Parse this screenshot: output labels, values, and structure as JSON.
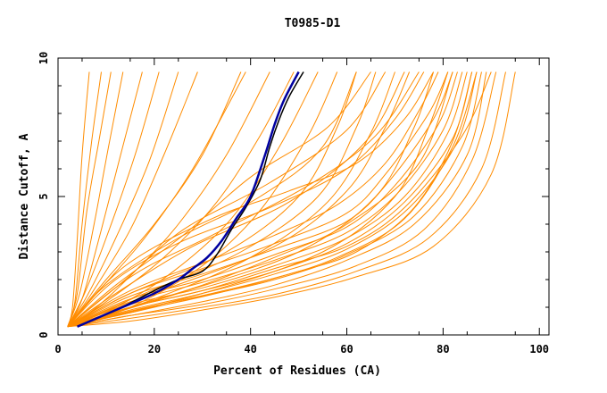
{
  "chart_data": {
    "type": "line",
    "title": "T0985-D1",
    "xlabel": "Percent of Residues (CA)",
    "ylabel": "Distance Cutoff, A",
    "xlim": [
      0,
      102
    ],
    "ylim": [
      0,
      10
    ],
    "x_ticks": [
      0,
      20,
      40,
      60,
      80,
      100
    ],
    "y_ticks": [
      0,
      5,
      10
    ],
    "grid": false,
    "legend": "none",
    "colors": {
      "background_curves": "#ff8c00",
      "highlight_primary": "#0000a0",
      "highlight_secondary": "#000000",
      "axes": "#000000"
    },
    "series": [
      {
        "x": [
          4.0,
          12.0,
          20.0,
          25.0,
          28.0,
          31.0,
          34.0,
          37.0,
          40.0,
          43.0,
          45.0,
          47.0,
          50.0
        ],
        "y": [
          0.3,
          0.9,
          1.5,
          2.0,
          2.4,
          2.8,
          3.4,
          4.2,
          5.0,
          6.5,
          7.6,
          8.5,
          9.5
        ]
      },
      {
        "x": [
          4.0,
          12.0,
          20.0,
          25.0,
          30.0,
          33.0,
          36.0,
          39.0,
          42.0,
          44.0,
          46.0,
          48.0,
          51.0
        ],
        "y": [
          0.3,
          0.9,
          1.6,
          2.0,
          2.3,
          2.9,
          3.8,
          4.6,
          5.6,
          6.8,
          7.8,
          8.6,
          9.5
        ]
      },
      {
        "x": [
          2.0,
          3.0,
          4.0,
          5.0,
          6.5
        ],
        "y": [
          0.3,
          1.0,
          3.5,
          6.5,
          9.5
        ]
      },
      {
        "x": [
          2.0,
          3.5,
          5.0,
          7.0,
          9.0
        ],
        "y": [
          0.3,
          1.2,
          4.0,
          7.0,
          9.5
        ]
      },
      {
        "x": [
          2.0,
          4.0,
          6.0,
          8.5,
          11.0
        ],
        "y": [
          0.3,
          1.5,
          4.5,
          7.0,
          9.5
        ]
      },
      {
        "x": [
          2.0,
          4.5,
          7.5,
          10.5,
          13.5
        ],
        "y": [
          0.3,
          1.5,
          4.0,
          6.8,
          9.5
        ]
      },
      {
        "x": [
          2.0,
          5.0,
          9.0,
          13.0,
          17.5
        ],
        "y": [
          0.3,
          1.3,
          3.8,
          6.5,
          9.5
        ]
      },
      {
        "x": [
          2.0,
          5.5,
          10.0,
          16.0,
          21.0
        ],
        "y": [
          0.3,
          1.5,
          3.5,
          6.5,
          9.5
        ]
      },
      {
        "x": [
          2.0,
          6.0,
          12.0,
          19.0,
          25.0
        ],
        "y": [
          0.3,
          1.4,
          3.5,
          6.3,
          9.5
        ]
      },
      {
        "x": [
          2.0,
          7.0,
          15.0,
          22.0,
          29.0
        ],
        "y": [
          0.3,
          1.5,
          3.8,
          6.5,
          9.5
        ]
      },
      {
        "x": [
          2.0,
          8.0,
          16.0,
          25.0,
          35.0,
          44.0
        ],
        "y": [
          0.3,
          1.0,
          2.3,
          4.0,
          6.5,
          9.5
        ]
      },
      {
        "x": [
          2.0,
          8.0,
          18.0,
          28.0,
          39.0
        ],
        "y": [
          0.3,
          1.5,
          3.5,
          6.0,
          9.5
        ]
      },
      {
        "x": [
          2.0,
          10.0,
          20.0,
          30.0,
          38.0
        ],
        "y": [
          0.3,
          2.0,
          4.0,
          6.5,
          9.5
        ]
      },
      {
        "x": [
          2.0,
          10.0,
          22.0,
          33.0,
          42.0,
          49.0
        ],
        "y": [
          0.3,
          1.2,
          2.8,
          4.8,
          7.2,
          9.5
        ]
      },
      {
        "x": [
          2.0,
          12.0,
          24.0,
          36.0,
          46.0,
          54.0
        ],
        "y": [
          0.3,
          1.0,
          2.3,
          4.2,
          6.8,
          9.5
        ]
      },
      {
        "x": [
          2.0,
          15.0,
          30.0,
          42.0,
          52.0,
          58.0
        ],
        "y": [
          0.3,
          1.0,
          2.5,
          4.5,
          7.2,
          9.5
        ]
      },
      {
        "x": [
          2.0,
          15.0,
          35.0,
          50.0,
          58.0,
          62.0
        ],
        "y": [
          0.3,
          1.5,
          3.0,
          5.0,
          7.5,
          9.5
        ]
      },
      {
        "x": [
          2.0,
          18.0,
          38.0,
          54.0,
          62.0,
          66.0
        ],
        "y": [
          0.3,
          1.5,
          3.0,
          5.0,
          7.5,
          9.5
        ]
      },
      {
        "x": [
          2.0,
          20.0,
          40.0,
          56.0,
          65.0,
          70.0
        ],
        "y": [
          0.3,
          1.3,
          2.8,
          4.8,
          7.3,
          9.5
        ]
      },
      {
        "x": [
          2.0,
          20.0,
          45.0,
          60.0,
          68.0,
          73.0
        ],
        "y": [
          0.3,
          1.5,
          3.2,
          5.2,
          7.5,
          9.5
        ]
      },
      {
        "x": [
          2.0,
          25.0,
          50.0,
          66.0,
          74.0,
          78.0
        ],
        "y": [
          0.3,
          1.5,
          3.0,
          5.0,
          7.5,
          9.5
        ]
      },
      {
        "x": [
          2.0,
          30.0,
          55.0,
          70.0,
          77.0,
          81.0
        ],
        "y": [
          0.3,
          1.5,
          3.0,
          5.0,
          7.5,
          9.5
        ]
      },
      {
        "x": [
          2.0,
          10.0,
          25.0,
          42.0,
          55.0,
          62.0
        ],
        "y": [
          0.3,
          1.8,
          3.5,
          5.0,
          6.8,
          9.5
        ]
      },
      {
        "x": [
          2.0,
          14.0,
          26.0,
          44.0,
          60.0,
          68.0
        ],
        "y": [
          0.3,
          2.0,
          3.8,
          5.5,
          7.4,
          9.5
        ]
      },
      {
        "x": [
          2.0,
          12.0,
          28.0,
          48.0,
          64.0,
          72.0
        ],
        "y": [
          0.3,
          1.5,
          3.2,
          4.8,
          7.0,
          9.5
        ]
      },
      {
        "x": [
          2.0,
          16.0,
          32.0,
          52.0,
          66.0,
          75.0
        ],
        "y": [
          0.3,
          2.2,
          3.6,
          5.4,
          7.2,
          9.5
        ]
      },
      {
        "x": [
          2.0,
          12.0,
          26.0,
          40.0,
          56.0,
          65.0
        ],
        "y": [
          0.3,
          1.8,
          3.6,
          5.7,
          7.5,
          9.5
        ]
      },
      {
        "x": [
          2.0,
          12.0,
          26.0,
          44.0,
          60.0,
          70.0,
          76.0
        ],
        "y": [
          0.3,
          2.0,
          3.4,
          4.6,
          6.0,
          7.8,
          9.5
        ]
      },
      {
        "x": [
          2.0,
          14.0,
          32.0,
          48.0,
          62.0,
          72.0,
          78.0
        ],
        "y": [
          0.3,
          2.5,
          4.2,
          5.2,
          6.2,
          7.8,
          9.5
        ]
      },
      {
        "x": [
          2.0,
          15.0,
          30.0,
          45.0,
          60.0,
          75.0,
          82.0
        ],
        "y": [
          0.3,
          1.0,
          1.8,
          2.8,
          4.0,
          6.2,
          9.5
        ]
      },
      {
        "x": [
          2.0,
          15.0,
          30.0,
          45.0,
          60.0,
          74.0,
          85.0,
          89.0
        ],
        "y": [
          0.3,
          0.7,
          1.2,
          1.8,
          2.7,
          4.0,
          6.5,
          9.5
        ]
      },
      {
        "x": [
          2.0,
          15.0,
          30.0,
          45.0,
          60.0,
          74.0,
          84.0,
          88.0
        ],
        "y": [
          0.3,
          0.8,
          1.4,
          2.0,
          2.9,
          4.3,
          6.8,
          9.5
        ]
      },
      {
        "x": [
          2.0,
          15.0,
          30.0,
          45.0,
          60.0,
          73.0,
          83.0,
          87.0
        ],
        "y": [
          0.3,
          0.9,
          1.5,
          2.2,
          3.1,
          4.6,
          7.0,
          9.5
        ]
      },
      {
        "x": [
          2.0,
          15.0,
          30.0,
          45.0,
          60.0,
          72.0,
          82.0,
          86.0
        ],
        "y": [
          0.3,
          1.0,
          1.6,
          2.3,
          3.3,
          4.8,
          7.1,
          9.5
        ]
      },
      {
        "x": [
          2.0,
          15.0,
          30.0,
          45.0,
          60.0,
          72.0,
          81.0,
          85.0
        ],
        "y": [
          0.3,
          1.1,
          1.7,
          2.5,
          3.5,
          5.0,
          7.3,
          9.5
        ]
      },
      {
        "x": [
          2.0,
          15.0,
          30.0,
          45.0,
          60.0,
          71.0,
          80.0,
          84.0
        ],
        "y": [
          0.3,
          1.2,
          1.9,
          2.7,
          3.7,
          5.2,
          7.4,
          9.5
        ]
      },
      {
        "x": [
          2.0,
          15.0,
          30.0,
          45.0,
          60.0,
          70.0,
          79.0,
          83.0
        ],
        "y": [
          0.3,
          1.3,
          2.0,
          2.9,
          3.9,
          5.4,
          7.6,
          9.5
        ]
      },
      {
        "x": [
          2.0,
          15.0,
          30.0,
          45.0,
          60.0,
          69.0,
          78.0,
          82.0
        ],
        "y": [
          0.3,
          1.4,
          2.2,
          3.1,
          4.1,
          5.6,
          7.8,
          9.5
        ]
      },
      {
        "x": [
          2.0,
          15.0,
          30.0,
          45.0,
          60.0,
          68.0,
          77.0,
          81.0
        ],
        "y": [
          0.3,
          1.5,
          2.4,
          3.3,
          4.4,
          5.8,
          8.0,
          9.5
        ]
      },
      {
        "x": [
          2.0,
          16.0,
          32.0,
          48.0,
          62.0,
          74.0,
          82.0,
          86.0
        ],
        "y": [
          0.3,
          0.9,
          1.5,
          2.2,
          3.0,
          4.6,
          7.0,
          9.5
        ]
      },
      {
        "x": [
          2.0,
          14.0,
          28.0,
          44.0,
          58.0,
          72.0,
          82.0,
          87.0
        ],
        "y": [
          0.3,
          0.8,
          1.3,
          2.0,
          2.8,
          4.2,
          6.8,
          9.5
        ]
      },
      {
        "x": [
          2.0,
          15.0,
          30.0,
          46.0,
          62.0,
          76.0,
          86.0,
          91.0
        ],
        "y": [
          0.3,
          0.7,
          1.1,
          1.7,
          2.5,
          3.8,
          6.3,
          9.5
        ]
      },
      {
        "x": [
          2.0,
          15.0,
          30.0,
          46.0,
          62.0,
          77.0,
          88.0,
          93.0
        ],
        "y": [
          0.3,
          0.6,
          1.0,
          1.5,
          2.3,
          3.5,
          6.0,
          9.5
        ]
      },
      {
        "x": [
          2.0,
          15.0,
          30.0,
          46.0,
          62.0,
          78.0,
          90.0,
          95.0
        ],
        "y": [
          0.3,
          0.5,
          0.9,
          1.4,
          2.1,
          3.2,
          5.8,
          9.5
        ]
      },
      {
        "x": [
          2.0,
          15.0,
          30.0,
          45.0,
          58.0,
          68.0,
          75.0,
          79.0
        ],
        "y": [
          0.3,
          1.6,
          2.6,
          3.6,
          4.7,
          6.2,
          8.1,
          9.5
        ]
      },
      {
        "x": [
          2.0,
          15.0,
          30.0,
          45.0,
          60.0,
          72.0,
          84.0,
          90.0
        ],
        "y": [
          0.3,
          1.0,
          1.6,
          2.4,
          3.2,
          4.6,
          7.2,
          9.5
        ]
      }
    ]
  }
}
